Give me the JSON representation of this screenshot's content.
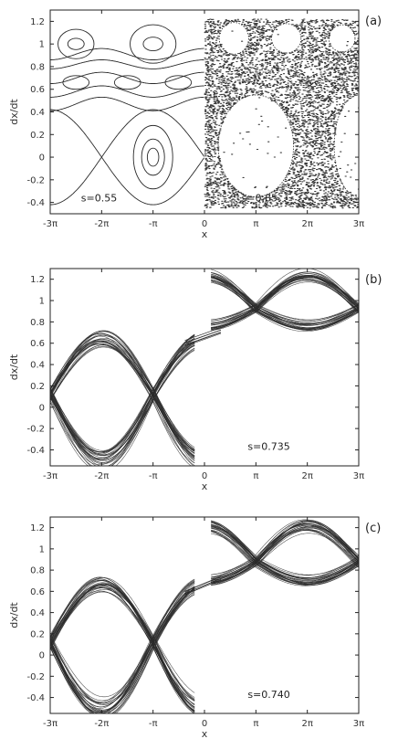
{
  "chart_data": [
    {
      "type": "scatter",
      "panel_label": "(a)",
      "xlabel": "x",
      "ylabel": "dx/dt",
      "xlim": [
        -9.42478,
        9.42478
      ],
      "ylim": [
        -0.5,
        1.3
      ],
      "x_ticks": [
        -9.42478,
        -6.28319,
        -3.14159,
        0,
        3.14159,
        6.28319,
        9.42478
      ],
      "x_tick_labels": [
        "-3π",
        "-2π",
        "-π",
        "0",
        "π",
        "2π",
        "3π"
      ],
      "y_ticks": [
        -0.4,
        -0.2,
        0,
        0.2,
        0.4,
        0.6,
        0.8,
        1,
        1.2
      ],
      "y_tick_labels": [
        "-0.4",
        "-0.2",
        "0",
        "0.2",
        "0.4",
        "0.6",
        "0.8",
        "1",
        "1.2"
      ],
      "annotations": [
        "s=0.55",
        "s=0.85"
      ],
      "series": [
        {
          "regime": "regular",
          "s": 0.55,
          "x_range": [
            -9.42478,
            0
          ],
          "orbits": [
            {
              "kind": "separatrix",
              "center_y": 0.0,
              "amplitude": 0.42
            },
            {
              "kind": "island",
              "center_x": -3.14159,
              "center_y": 0.0,
              "rx": 0.35,
              "ry": 0.08
            },
            {
              "kind": "island",
              "center_x": -3.14159,
              "center_y": 0.0,
              "rx": 0.7,
              "ry": 0.16
            },
            {
              "kind": "island",
              "center_x": -3.14159,
              "center_y": 0.0,
              "rx": 1.2,
              "ry": 0.28
            },
            {
              "kind": "wave",
              "center_y": 0.47,
              "amplitude": 0.06
            },
            {
              "kind": "wave",
              "center_y": 0.58,
              "amplitude": 0.05
            },
            {
              "kind": "wave",
              "center_y": 0.7,
              "amplitude": 0.05
            },
            {
              "kind": "wave",
              "center_y": 0.82,
              "amplitude": 0.04
            },
            {
              "kind": "wave",
              "center_y": 0.91,
              "amplitude": 0.05
            },
            {
              "kind": "island",
              "center_x": -7.85,
              "center_y": 0.66,
              "rx": 0.8,
              "ry": 0.06
            },
            {
              "kind": "island",
              "center_x": -4.7,
              "center_y": 0.66,
              "rx": 0.8,
              "ry": 0.06
            },
            {
              "kind": "island",
              "center_x": -1.6,
              "center_y": 0.66,
              "rx": 0.8,
              "ry": 0.06
            },
            {
              "kind": "island",
              "center_x": -7.85,
              "center_y": 1.0,
              "rx": 1.1,
              "ry": 0.13
            },
            {
              "kind": "island",
              "center_x": -7.85,
              "center_y": 1.0,
              "rx": 0.5,
              "ry": 0.05
            },
            {
              "kind": "island",
              "center_x": -3.14159,
              "center_y": 1.0,
              "rx": 1.4,
              "ry": 0.17
            },
            {
              "kind": "island",
              "center_x": -3.14159,
              "center_y": 1.0,
              "rx": 0.6,
              "ry": 0.06
            }
          ]
        },
        {
          "regime": "chaotic",
          "s": 0.85,
          "x_range": [
            0,
            9.42478
          ],
          "holes": [
            {
              "center_x": 3.14159,
              "center_y": 0.1,
              "rx": 2.3,
              "ry": 0.45
            },
            {
              "center_x": 9.42478,
              "center_y": 0.1,
              "rx": 1.5,
              "ry": 0.45
            },
            {
              "center_x": 1.8,
              "center_y": 1.05,
              "rx": 0.9,
              "ry": 0.14
            },
            {
              "center_x": 5.0,
              "center_y": 1.05,
              "rx": 0.9,
              "ry": 0.13
            },
            {
              "center_x": 8.4,
              "center_y": 1.05,
              "rx": 0.8,
              "ry": 0.12
            }
          ],
          "y_range": [
            -0.45,
            1.22
          ]
        }
      ]
    },
    {
      "type": "scatter",
      "panel_label": "(b)",
      "xlabel": "x",
      "ylabel": "dx/dt",
      "xlim": [
        -9.42478,
        9.42478
      ],
      "ylim": [
        -0.55,
        1.3
      ],
      "x_ticks": [
        -9.42478,
        -6.28319,
        -3.14159,
        0,
        3.14159,
        6.28319,
        9.42478
      ],
      "x_tick_labels": [
        "-3π",
        "-2π",
        "-π",
        "0",
        "π",
        "2π",
        "3π"
      ],
      "y_ticks": [
        -0.4,
        -0.2,
        0,
        0.2,
        0.4,
        0.6,
        0.8,
        1,
        1.2
      ],
      "y_tick_labels": [
        "-0.4",
        "-0.2",
        "0",
        "0.2",
        "0.4",
        "0.6",
        "0.8",
        "1",
        "1.2"
      ],
      "annotations": [
        "s=0.735"
      ],
      "series": [
        {
          "regime": "chaotic_band",
          "s": 0.735,
          "lower_center_y": 0.12,
          "lower_amplitude": 0.62,
          "lower_width": 0.07,
          "upper_center_y": 0.93,
          "upper_amplitude": 0.3,
          "upper_width": 0.07,
          "bridge": {
            "x": [
              -1.2,
              1.0
            ],
            "y": [
              0.6,
              0.72
            ]
          }
        }
      ]
    },
    {
      "type": "scatter",
      "panel_label": "(c)",
      "xlabel": "x",
      "ylabel": "dx/dt",
      "xlim": [
        -9.42478,
        9.42478
      ],
      "ylim": [
        -0.55,
        1.3
      ],
      "x_ticks": [
        -9.42478,
        -6.28319,
        -3.14159,
        0,
        3.14159,
        6.28319,
        9.42478
      ],
      "x_tick_labels": [
        "-3π",
        "-2π",
        "-π",
        "0",
        "π",
        "2π",
        "3π"
      ],
      "y_ticks": [
        -0.4,
        -0.2,
        0,
        0.2,
        0.4,
        0.6,
        0.8,
        1,
        1.2
      ],
      "y_tick_labels": [
        "-0.4",
        "-0.2",
        "0",
        "0.2",
        "0.4",
        "0.6",
        "0.8",
        "1",
        "1.2"
      ],
      "annotations": [
        "s=0.740"
      ],
      "series": [
        {
          "regime": "chaotic_band",
          "s": 0.74,
          "lower_center_y": 0.12,
          "lower_amplitude": 0.62,
          "lower_width": 0.08,
          "upper_center_y": 0.88,
          "upper_amplitude": 0.34,
          "upper_width": 0.09,
          "bridge": {
            "x": [
              -1.2,
              1.0
            ],
            "y": [
              0.58,
              0.72
            ]
          }
        }
      ]
    }
  ]
}
